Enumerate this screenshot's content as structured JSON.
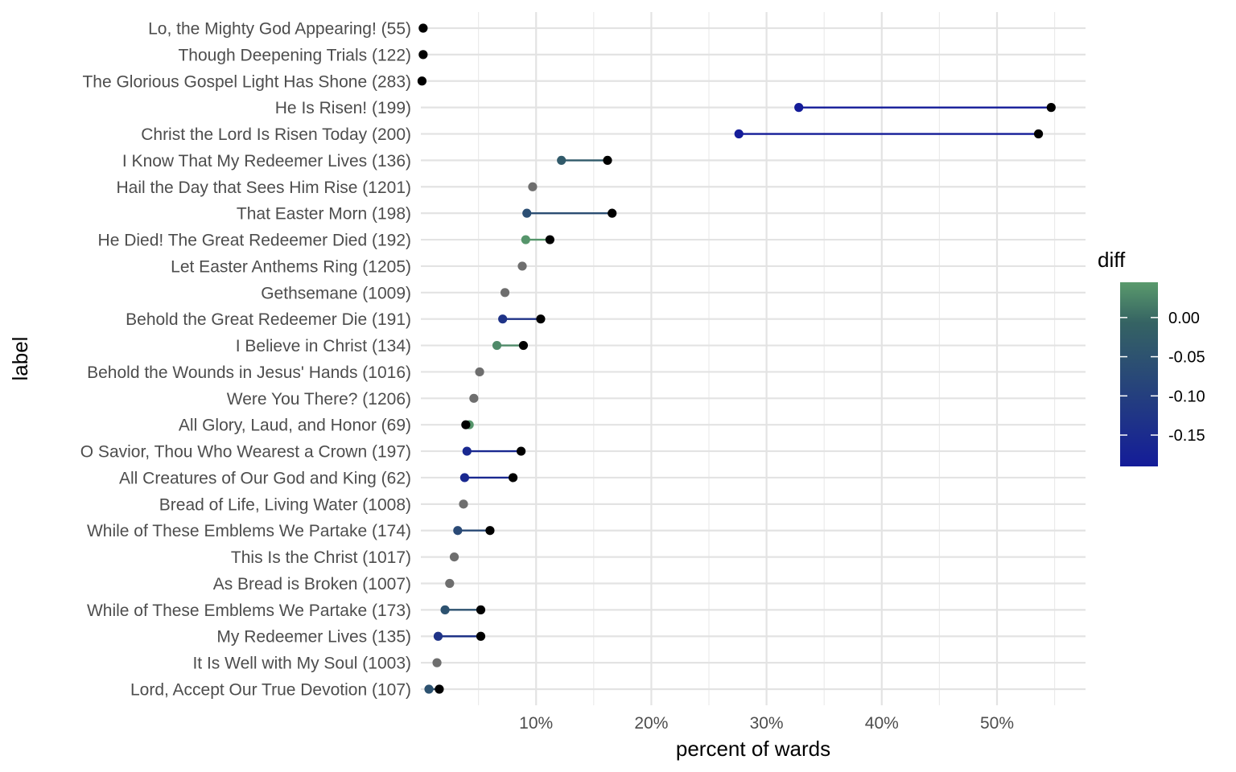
{
  "chart_data": {
    "type": "dumbbell",
    "xlabel": "percent of wards",
    "ylabel": "label",
    "x_unit": "percent",
    "xlim": [
      0,
      57.8
    ],
    "x_ticks": [
      10,
      20,
      30,
      40,
      50
    ],
    "x_tick_labels": [
      "10%",
      "20%",
      "30%",
      "40%",
      "50%"
    ],
    "grid": true,
    "legend": {
      "title": "diff",
      "placement": "right",
      "type": "color-gradient",
      "range": [
        -0.19,
        0.045
      ],
      "ticks": [
        0.0,
        -0.05,
        -0.1,
        -0.15
      ],
      "tick_labels": [
        "0.00",
        "-0.05",
        "-0.10",
        "-0.15"
      ],
      "color_low": "#141c99",
      "color_mid": "#356363",
      "color_high": "#5a9a6c"
    },
    "colors": {
      "single_point": "#6e6e6e",
      "end_point": "#000000"
    },
    "rows": [
      {
        "label": "Lo, the Mighty God Appearing! (55)",
        "start": null,
        "end": 0.2
      },
      {
        "label": "Though Deepening Trials (122)",
        "start": null,
        "end": 0.2
      },
      {
        "label": "The Glorious Gospel Light Has Shone (283)",
        "start": null,
        "end": 0.1
      },
      {
        "label": "He Is Risen! (199)",
        "start": 32.8,
        "end": 54.7,
        "diff": -0.19
      },
      {
        "label": "Christ the Lord Is Risen Today (200)",
        "start": 27.6,
        "end": 53.6,
        "diff": -0.19
      },
      {
        "label": "I Know That My Redeemer Lives (136)",
        "start": 12.2,
        "end": 16.2,
        "diff": -0.03
      },
      {
        "label": "Hail the Day that Sees Him Rise (1201)",
        "start": null,
        "end": 9.7
      },
      {
        "label": "That Easter Morn (198)",
        "start": 9.2,
        "end": 16.6,
        "diff": -0.06
      },
      {
        "label": "He Died! The Great Redeemer Died (192)",
        "start": 9.1,
        "end": 11.2,
        "diff": 0.04
      },
      {
        "label": "Let Easter Anthems Ring (1205)",
        "start": null,
        "end": 8.8
      },
      {
        "label": "Gethsemane (1009)",
        "start": null,
        "end": 7.3
      },
      {
        "label": "Behold the Great Redeemer Die (191)",
        "start": 7.1,
        "end": 10.4,
        "diff": -0.13
      },
      {
        "label": "I Believe in Christ (134)",
        "start": 6.6,
        "end": 8.9,
        "diff": 0.03
      },
      {
        "label": "Behold the Wounds in Jesus' Hands (1016)",
        "start": null,
        "end": 5.1
      },
      {
        "label": "Were You There? (1206)",
        "start": null,
        "end": 4.6
      },
      {
        "label": "All Glory, Laud, and Honor (69)",
        "start": 4.2,
        "end": 3.9,
        "diff": 0.04
      },
      {
        "label": "O Savior, Thou Who Wearest a Crown (197)",
        "start": 4.0,
        "end": 8.7,
        "diff": -0.16
      },
      {
        "label": "All Creatures of Our God and King (62)",
        "start": 3.8,
        "end": 8.0,
        "diff": -0.16
      },
      {
        "label": "Bread of Life, Living Water (1008)",
        "start": null,
        "end": 3.7
      },
      {
        "label": "While of These Emblems We Partake (174)",
        "start": 3.2,
        "end": 6.0,
        "diff": -0.07
      },
      {
        "label": "This Is the Christ (1017)",
        "start": null,
        "end": 2.9
      },
      {
        "label": "As Bread is Broken (1007)",
        "start": null,
        "end": 2.5
      },
      {
        "label": "While of These Emblems We Partake (173)",
        "start": 2.1,
        "end": 5.2,
        "diff": -0.05
      },
      {
        "label": "My Redeemer Lives (135)",
        "start": 1.5,
        "end": 5.2,
        "diff": -0.13
      },
      {
        "label": "It Is Well with My Soul (1003)",
        "start": null,
        "end": 1.4
      },
      {
        "label": "Lord, Accept Our True Devotion (107)",
        "start": 0.7,
        "end": 1.6,
        "diff": -0.05
      }
    ]
  }
}
